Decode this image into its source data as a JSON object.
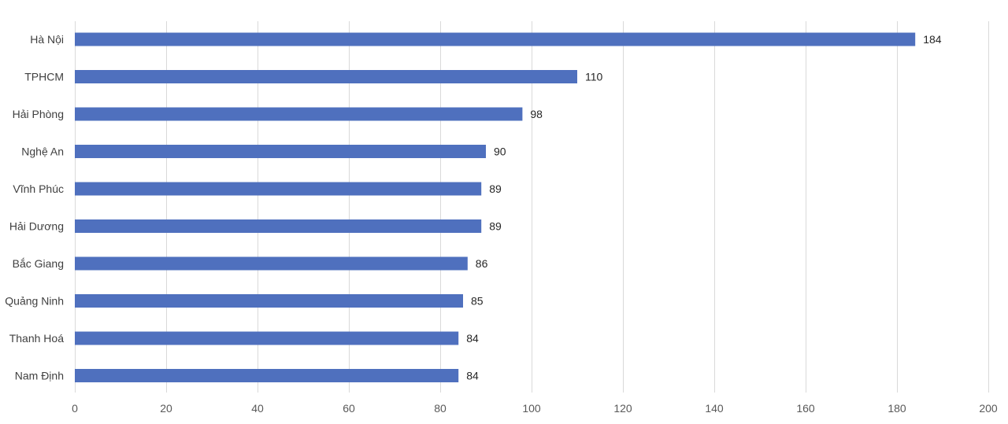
{
  "chart_data": {
    "type": "bar",
    "orientation": "horizontal",
    "categories": [
      "Hà Nội",
      "TPHCM",
      "Hải Phòng",
      "Nghệ An",
      "Vĩnh Phúc",
      "Hải Dương",
      "Bắc Giang",
      "Quảng Ninh",
      "Thanh Hoá",
      "Nam Định"
    ],
    "values": [
      184,
      110,
      98,
      90,
      89,
      89,
      86,
      85,
      84,
      84
    ],
    "xlim": [
      0,
      200
    ],
    "xticks": [
      0,
      20,
      40,
      60,
      80,
      100,
      120,
      140,
      160,
      180,
      200
    ],
    "title": "",
    "xlabel": "",
    "ylabel": "",
    "grid": "vertical",
    "legend": "none",
    "data_labels": true,
    "bar_color": "#4f70be"
  }
}
